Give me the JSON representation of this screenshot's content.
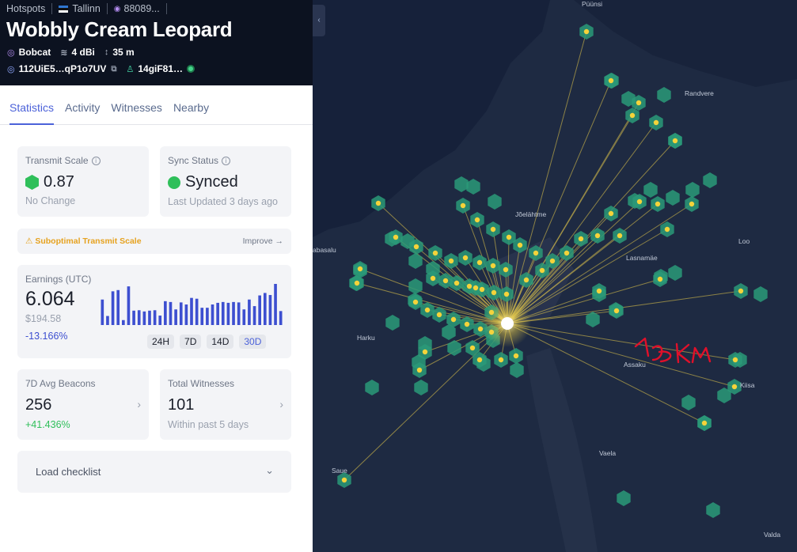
{
  "breadcrumb": {
    "hotspots": "Hotspots",
    "city": "Tallinn",
    "id": "88089..."
  },
  "hotspot": {
    "name": "Wobbly Cream Leopard",
    "maker": "Bobcat",
    "gain": "4 dBi",
    "elevation": "35 m",
    "address": "112UiE5…qP1o7UV",
    "owner": "14giF81…"
  },
  "tabs": [
    "Statistics",
    "Activity",
    "Witnesses",
    "Nearby"
  ],
  "transmit": {
    "label": "Transmit Scale",
    "value": "0.87",
    "note": "No Change"
  },
  "sync": {
    "label": "Sync Status",
    "value": "Synced",
    "note": "Last Updated 3 days ago"
  },
  "warning": {
    "text": "Suboptimal Transmit Scale",
    "link": "Improve"
  },
  "earnings": {
    "label": "Earnings (UTC)",
    "value": "6.064",
    "usd": "$194.58",
    "change": "-13.166%",
    "ranges": [
      "24H",
      "7D",
      "14D",
      "30D"
    ],
    "selected_range": "30D",
    "bars": [
      0.62,
      0.22,
      0.82,
      0.85,
      0.12,
      0.94,
      0.35,
      0.36,
      0.33,
      0.35,
      0.36,
      0.23,
      0.58,
      0.56,
      0.38,
      0.55,
      0.5,
      0.66,
      0.64,
      0.42,
      0.42,
      0.5,
      0.54,
      0.56,
      0.54,
      0.56,
      0.55,
      0.38,
      0.62,
      0.46,
      0.72,
      0.78,
      0.73,
      1.0,
      0.34
    ],
    "bar_color": "#3d4fd0"
  },
  "beacons": {
    "label": "7D Avg Beacons",
    "value": "256",
    "change": "+41.436%"
  },
  "witnesses": {
    "label": "Total Witnesses",
    "value": "101",
    "note": "Within past 5 days"
  },
  "checklist": {
    "label": "Load checklist"
  },
  "map": {
    "places": [
      "Püünsi",
      "Randvere",
      "Loo",
      "Harku",
      "Assaku",
      "Kiisa",
      "Vaela",
      "Saue",
      "Valda",
      "abasalu",
      "Jõelähtme",
      "Lasnamäe"
    ],
    "annotation": "13 KM",
    "colors": {
      "hex": "#2a9a78",
      "dot": "#f5d33a",
      "line": "#d6bd4a",
      "hotspot": "#ffffff"
    }
  }
}
